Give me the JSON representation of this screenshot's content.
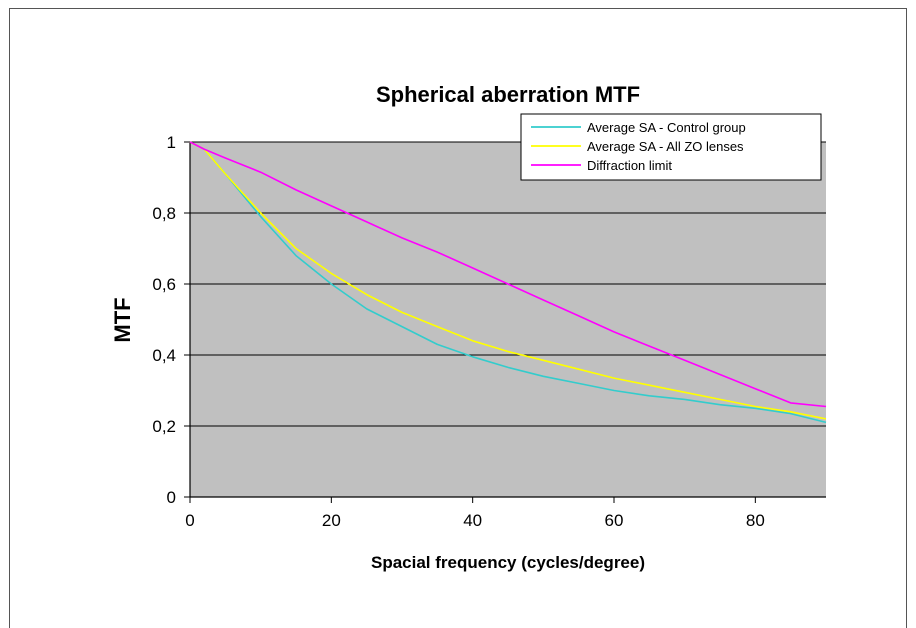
{
  "chart_data": {
    "type": "line",
    "title": "Spherical aberration MTF",
    "xlabel": "Spacial frequency (cycles/degree)",
    "ylabel": "MTF",
    "xlim": [
      0,
      90
    ],
    "ylim": [
      0,
      1
    ],
    "x_ticks": [
      0,
      20,
      40,
      60,
      80
    ],
    "x_tick_labels": [
      "0",
      "20",
      "40",
      "60",
      "80"
    ],
    "y_ticks": [
      0,
      0.2,
      0.4,
      0.6,
      0.8,
      1
    ],
    "y_tick_labels": [
      "0",
      "0,2",
      "0,4",
      "0,6",
      "0,8",
      "1"
    ],
    "grid": "horizontal",
    "legend_position": "top-right",
    "plot_background": "#c0c0c0",
    "series": [
      {
        "name": "Average SA - Control group",
        "color": "#33cccc",
        "x": [
          0,
          2,
          5,
          10,
          15,
          20,
          25,
          30,
          35,
          40,
          45,
          50,
          55,
          60,
          65,
          70,
          75,
          80,
          85,
          90
        ],
        "y": [
          1.0,
          0.98,
          0.91,
          0.79,
          0.68,
          0.6,
          0.53,
          0.48,
          0.43,
          0.395,
          0.365,
          0.34,
          0.32,
          0.3,
          0.285,
          0.275,
          0.26,
          0.25,
          0.235,
          0.21
        ]
      },
      {
        "name": "Average SA - All ZO lenses",
        "color": "#ffff00",
        "x": [
          0,
          2,
          5,
          10,
          15,
          20,
          25,
          30,
          35,
          40,
          45,
          50,
          55,
          60,
          65,
          70,
          75,
          80,
          85,
          90
        ],
        "y": [
          1.0,
          0.98,
          0.91,
          0.8,
          0.7,
          0.63,
          0.57,
          0.52,
          0.48,
          0.44,
          0.41,
          0.385,
          0.36,
          0.335,
          0.315,
          0.295,
          0.275,
          0.255,
          0.24,
          0.22
        ]
      },
      {
        "name": "Diffraction limit",
        "color": "#ff00ff",
        "x": [
          0,
          2,
          5,
          10,
          15,
          20,
          25,
          30,
          35,
          40,
          45,
          50,
          55,
          60,
          65,
          70,
          75,
          80,
          85,
          90
        ],
        "y": [
          1.0,
          0.98,
          0.955,
          0.915,
          0.865,
          0.82,
          0.775,
          0.73,
          0.69,
          0.645,
          0.6,
          0.555,
          0.51,
          0.465,
          0.425,
          0.385,
          0.345,
          0.305,
          0.265,
          0.255
        ]
      }
    ]
  }
}
